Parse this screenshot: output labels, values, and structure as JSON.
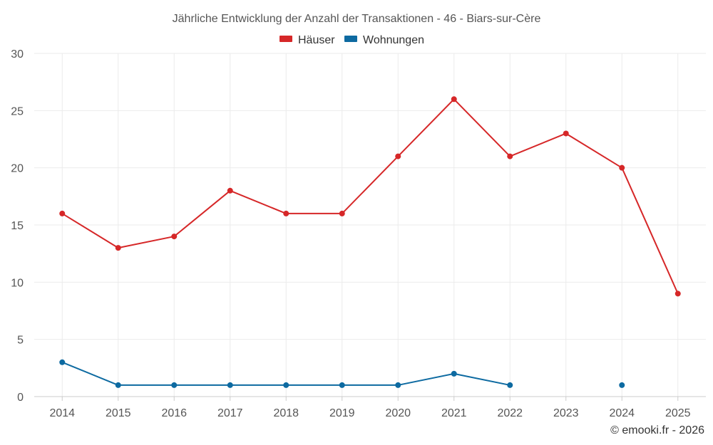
{
  "chart_data": {
    "type": "line",
    "title": "Jährliche Entwicklung der Anzahl der Transaktionen - 46 - Biars-sur-Cère",
    "xlabel": "",
    "ylabel": "",
    "categories": [
      "2014",
      "2015",
      "2016",
      "2017",
      "2018",
      "2019",
      "2020",
      "2021",
      "2022",
      "2023",
      "2024",
      "2025"
    ],
    "ylim": [
      0,
      30
    ],
    "yticks": [
      0,
      5,
      10,
      15,
      20,
      25,
      30
    ],
    "grid": true,
    "legend_position": "top-center",
    "series": [
      {
        "name": "Häuser",
        "color": "#d62728",
        "values": [
          16,
          13,
          14,
          18,
          16,
          16,
          21,
          26,
          21,
          23,
          20,
          9
        ]
      },
      {
        "name": "Wohnungen",
        "color": "#0d6aa1",
        "values": [
          3,
          1,
          1,
          1,
          1,
          1,
          1,
          2,
          1,
          null,
          1,
          null
        ]
      }
    ],
    "credit": "© emooki.fr - 2026"
  }
}
